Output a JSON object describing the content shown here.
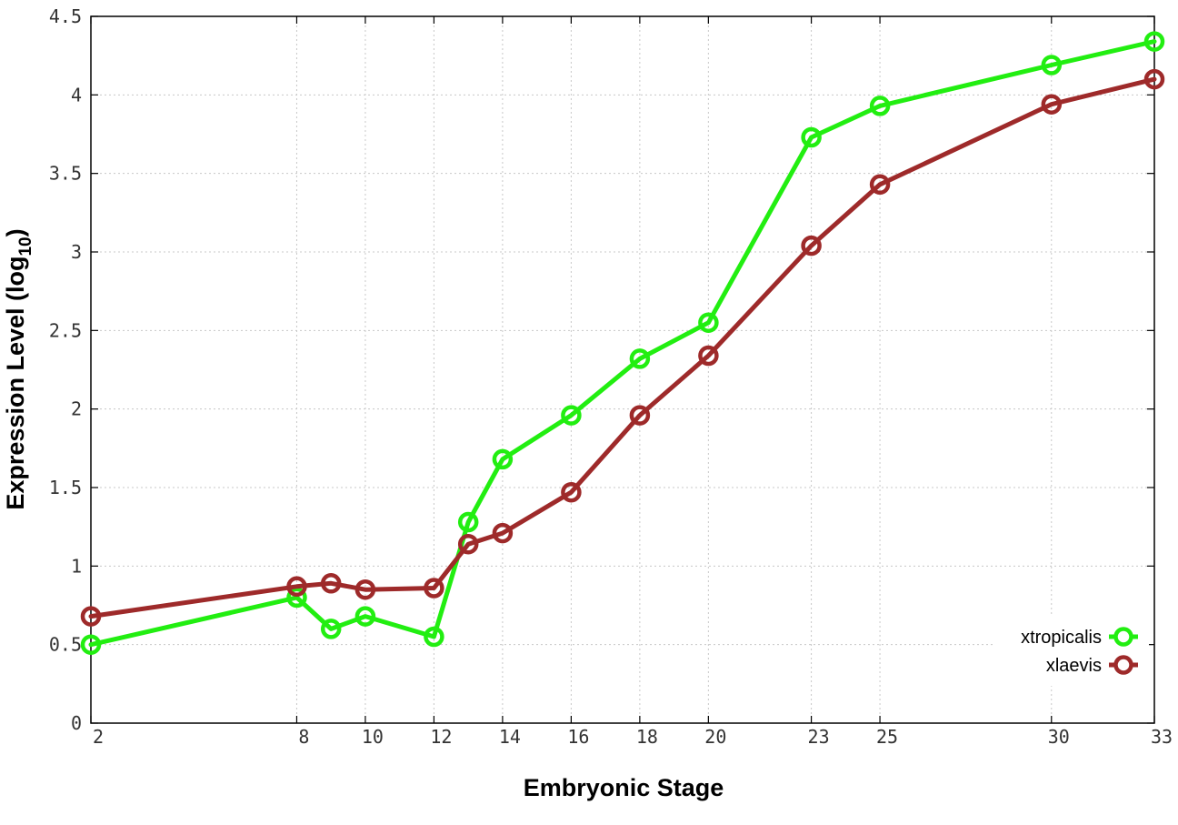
{
  "chart_data": {
    "type": "line",
    "xlabel": "Embryonic Stage",
    "ylabel_main": "Expression Level (log",
    "ylabel_sub": "10",
    "ylabel_close": ")",
    "xlim": [
      2,
      33
    ],
    "ylim": [
      0,
      4.5
    ],
    "x_ticks": [
      2,
      8,
      10,
      12,
      14,
      16,
      18,
      20,
      23,
      25,
      30,
      33
    ],
    "y_ticks": [
      "0",
      "0.5",
      "1",
      "1.5",
      "2",
      "2.5",
      "3",
      "3.5",
      "4",
      "4.5"
    ],
    "grid": true,
    "legend_position": "bottom-right",
    "series": [
      {
        "name": "xtropicalis",
        "color": "#22ee11",
        "x": [
          2,
          8,
          9,
          10,
          12,
          13,
          14,
          16,
          18,
          20,
          23,
          25,
          30,
          33
        ],
        "y": [
          0.5,
          0.8,
          0.6,
          0.68,
          0.55,
          1.28,
          1.68,
          1.96,
          2.32,
          2.55,
          3.73,
          3.93,
          4.19,
          4.34
        ]
      },
      {
        "name": "xlaevis",
        "color": "#9e2a2a",
        "x": [
          2,
          8,
          9,
          10,
          12,
          13,
          14,
          16,
          18,
          20,
          23,
          25,
          30,
          33
        ],
        "y": [
          0.68,
          0.87,
          0.89,
          0.85,
          0.86,
          1.14,
          1.21,
          1.47,
          1.96,
          2.34,
          3.04,
          3.43,
          3.94,
          4.1
        ]
      }
    ]
  }
}
